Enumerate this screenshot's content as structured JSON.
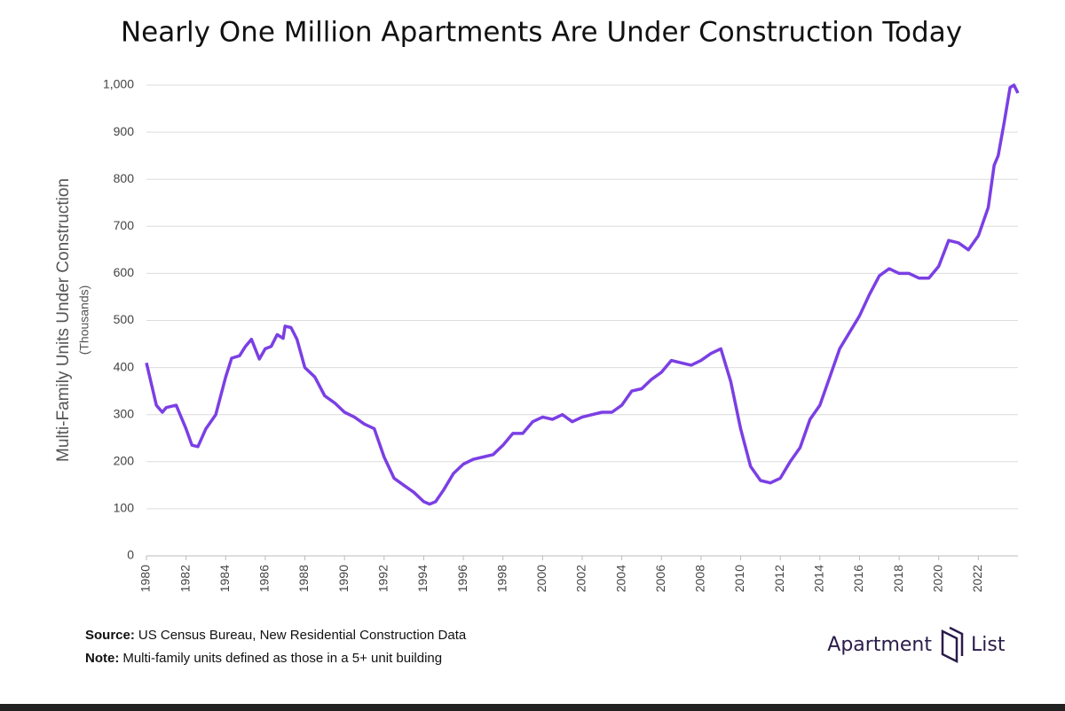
{
  "chart_data": {
    "type": "line",
    "title": "Nearly One Million Apartments Are Under Construction Today",
    "y_label": "Multi-Family Units Under Construction",
    "y_sublabel": "(Thousands)",
    "color": "#7b3fe4",
    "x": [
      1980,
      1980.5,
      1980.8,
      1981,
      1981.5,
      1982,
      1982.3,
      1982.6,
      1983,
      1983.5,
      1984,
      1984.3,
      1984.7,
      1985,
      1985.3,
      1985.7,
      1986,
      1986.3,
      1986.6,
      1986.9,
      1987,
      1987.3,
      1987.6,
      1988,
      1988.5,
      1989,
      1989.5,
      1990,
      1990.5,
      1991,
      1991.5,
      1992,
      1992.5,
      1993,
      1993.5,
      1994,
      1994.3,
      1994.6,
      1995,
      1995.5,
      1996,
      1996.5,
      1997,
      1997.5,
      1998,
      1998.5,
      1999,
      1999.5,
      2000,
      2000.5,
      2001,
      2001.5,
      2002,
      2002.5,
      2003,
      2003.5,
      2004,
      2004.5,
      2005,
      2005.5,
      2006,
      2006.5,
      2007,
      2007.5,
      2008,
      2008.5,
      2009,
      2009.5,
      2010,
      2010.5,
      2011,
      2011.5,
      2012,
      2012.5,
      2013,
      2013.5,
      2014,
      2014.5,
      2015,
      2015.5,
      2016,
      2016.5,
      2017,
      2017.5,
      2018,
      2018.5,
      2019,
      2019.5,
      2020,
      2020.5,
      2021,
      2021.5,
      2022,
      2022.5,
      2022.8,
      2023,
      2023.3,
      2023.6,
      2023.8,
      2024
    ],
    "values": [
      410,
      320,
      305,
      315,
      320,
      270,
      235,
      232,
      270,
      300,
      380,
      420,
      425,
      445,
      460,
      418,
      440,
      445,
      470,
      462,
      488,
      485,
      460,
      400,
      380,
      340,
      325,
      305,
      295,
      280,
      270,
      210,
      165,
      150,
      135,
      115,
      110,
      115,
      140,
      175,
      195,
      205,
      210,
      215,
      235,
      260,
      260,
      285,
      295,
      290,
      300,
      285,
      295,
      300,
      305,
      305,
      320,
      350,
      355,
      375,
      390,
      415,
      410,
      405,
      415,
      430,
      440,
      370,
      270,
      190,
      160,
      155,
      165,
      200,
      230,
      290,
      320,
      380,
      440,
      475,
      510,
      555,
      595,
      610,
      600,
      600,
      590,
      590,
      615,
      670,
      665,
      650,
      680,
      740,
      830,
      850,
      920,
      995,
      1000,
      983
    ],
    "xlim": [
      1980,
      2024
    ],
    "xticks": [
      1980,
      1982,
      1984,
      1986,
      1988,
      1990,
      1992,
      1994,
      1996,
      1998,
      2000,
      2002,
      2004,
      2006,
      2008,
      2010,
      2012,
      2014,
      2016,
      2018,
      2020,
      2022
    ],
    "ylim": [
      0,
      1000
    ],
    "yticks": [
      0,
      100,
      200,
      300,
      400,
      500,
      600,
      700,
      800,
      900,
      {
        "value": 1000,
        "label": "1,000"
      }
    ],
    "grid": true
  },
  "footer": {
    "source_label": "Source:",
    "source": "US Census Bureau, New Residential Construction Data",
    "note_label": "Note:",
    "note": "Multi-family units defined as those in a 5+ unit building",
    "logo_left": "Apartment",
    "logo_right": "List"
  }
}
